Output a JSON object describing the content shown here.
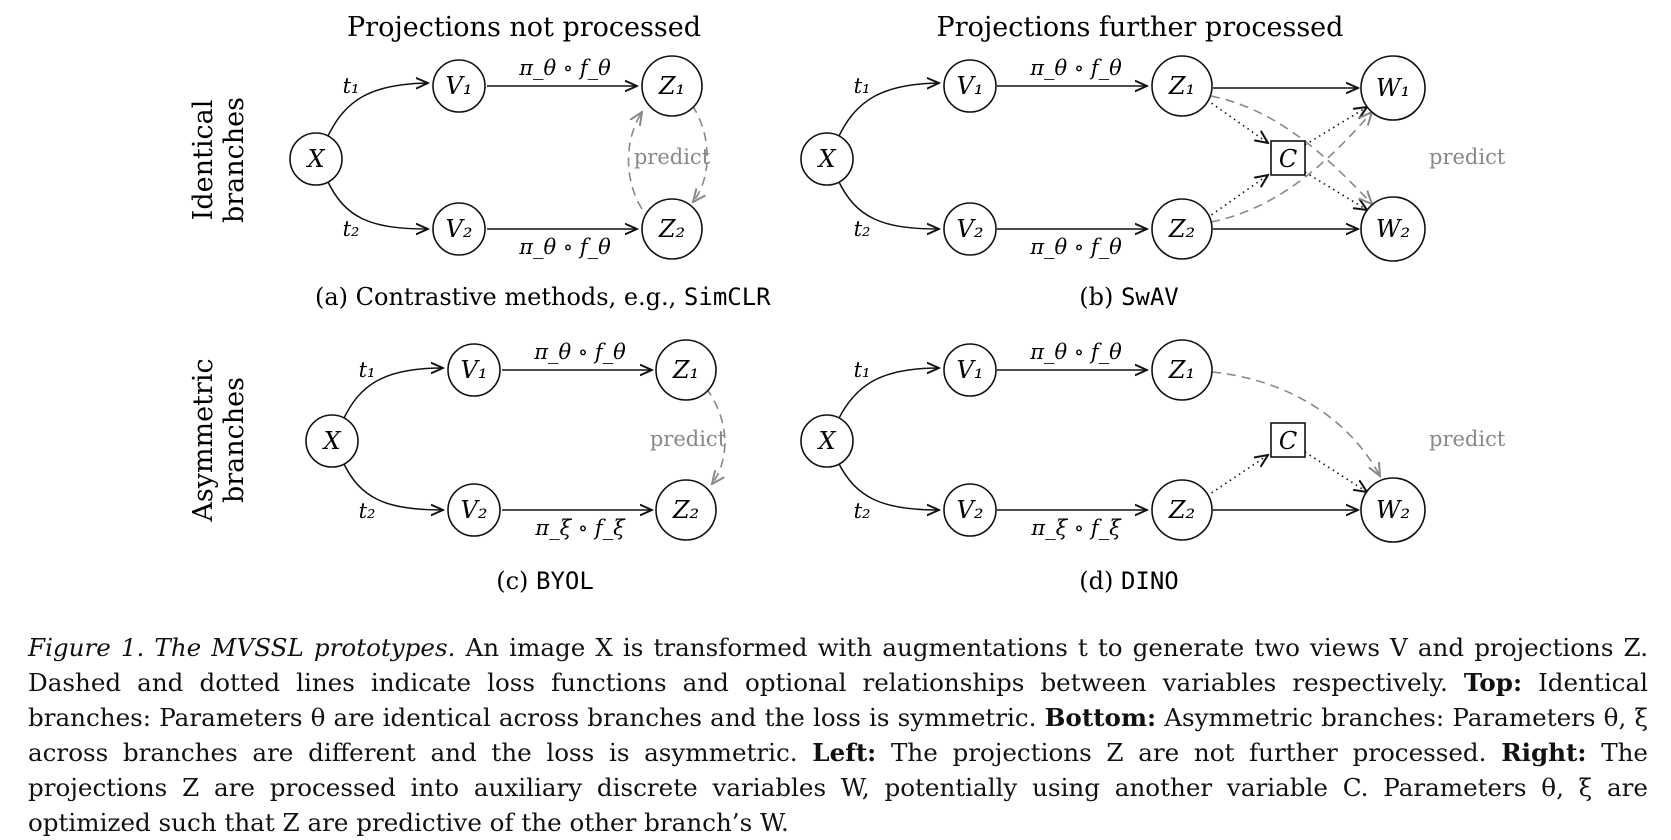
{
  "headers": {
    "left": "Projections not processed",
    "right": "Projections further processed"
  },
  "row_labels": {
    "top": [
      "Identical",
      "branches"
    ],
    "bottom": [
      "Asymmetric",
      "branches"
    ]
  },
  "nodes": {
    "x": "X",
    "v1": "V₁",
    "v2": "V₂",
    "z1": "Z₁",
    "z2": "Z₂",
    "w1": "W₁",
    "w2": "W₂",
    "c": "C"
  },
  "edges": {
    "t1": "t₁",
    "t2": "t₂",
    "pi_theta_f_theta": "π_θ ∘ f_θ",
    "pi_xi_f_xi": "π_ξ ∘ f_ξ",
    "predict": "predict"
  },
  "subcaptions": {
    "a": {
      "prefix": "(a) Contrastive methods, e.g., ",
      "method": "SimCLR"
    },
    "b": {
      "prefix": "(b) ",
      "method": "SwAV"
    },
    "c": {
      "prefix": "(c) ",
      "method": "BYOL"
    },
    "d": {
      "prefix": "(d) ",
      "method": "DINO"
    }
  },
  "caption": {
    "figure_label": "Figure 1. The MVSSL prototypes.",
    "text": " An image X is transformed with augmentations t to generate two views V and projections Z. Dashed and dotted lines indicate loss functions and optional relationships between variables respectively. ",
    "top_label": "Top:",
    "top_text": " Identical branches: Parameters θ are identical across branches and the loss is symmetric. ",
    "bottom_label": "Bottom:",
    "bottom_text": " Asymmetric branches: Parameters θ, ξ across branches are different and the loss is asymmetric. ",
    "left_label": "Left:",
    "left_text": " The projections Z are not further processed. ",
    "right_label": "Right:",
    "right_text": " The projections Z are processed into auxiliary discrete variables W, potentially using another variable C. Parameters θ, ξ are optimized such that Z are predictive of the other branch’s W."
  }
}
